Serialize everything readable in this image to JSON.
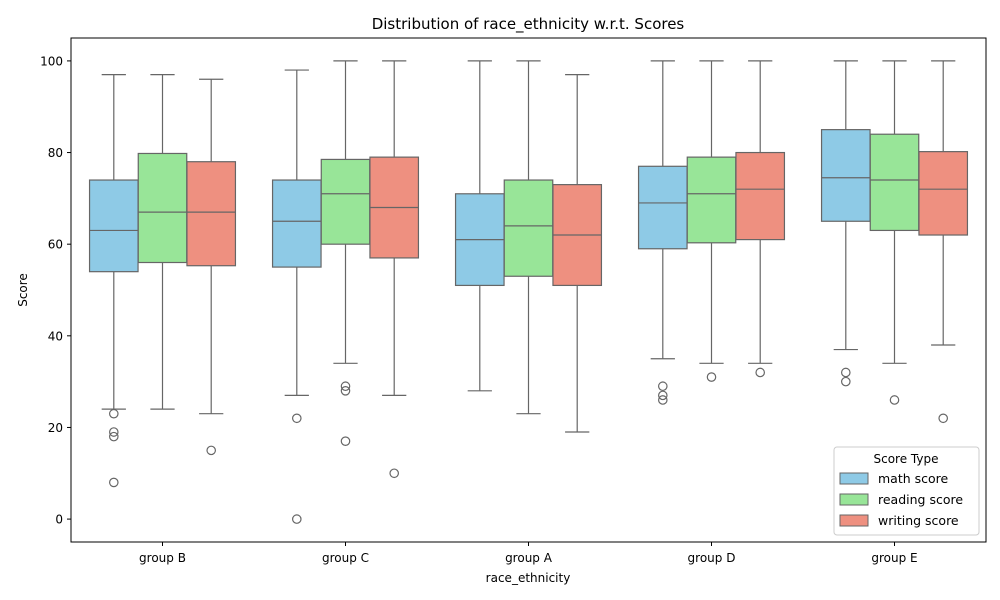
{
  "chart_data": {
    "type": "box",
    "title": "Distribution of race_ethnicity w.r.t. Scores",
    "xlabel": "race_ethnicity",
    "ylabel": "Score",
    "ylim": [
      -5,
      105
    ],
    "yticks": [
      0,
      20,
      40,
      60,
      80,
      100
    ],
    "categories": [
      "group B",
      "group C",
      "group A",
      "group D",
      "group E"
    ],
    "legend": {
      "title": "Score Type",
      "placement": "lower-right"
    },
    "series": [
      {
        "name": "math score",
        "color": "#8ecae6",
        "boxes": [
          {
            "low": 24,
            "q1": 54,
            "median": 63,
            "q3": 74,
            "high": 97,
            "outliers": [
              23,
              19,
              18,
              8
            ]
          },
          {
            "low": 27,
            "q1": 55,
            "median": 65,
            "q3": 74,
            "high": 98,
            "outliers": [
              22,
              0
            ]
          },
          {
            "low": 28,
            "q1": 51,
            "median": 61,
            "q3": 71,
            "high": 100,
            "outliers": []
          },
          {
            "low": 35,
            "q1": 59,
            "median": 69,
            "q3": 77,
            "high": 100,
            "outliers": [
              29,
              27,
              26
            ]
          },
          {
            "low": 37,
            "q1": 65,
            "median": 74.5,
            "q3": 85,
            "high": 100,
            "outliers": [
              32,
              30
            ]
          }
        ]
      },
      {
        "name": "reading score",
        "color": "#98e598",
        "boxes": [
          {
            "low": 24,
            "q1": 56,
            "median": 67,
            "q3": 79.8,
            "high": 97,
            "outliers": []
          },
          {
            "low": 34,
            "q1": 60,
            "median": 71,
            "q3": 78.5,
            "high": 100,
            "outliers": [
              29,
              28,
              17
            ]
          },
          {
            "low": 23,
            "q1": 53,
            "median": 64,
            "q3": 74,
            "high": 100,
            "outliers": []
          },
          {
            "low": 34,
            "q1": 60.3,
            "median": 71,
            "q3": 79,
            "high": 100,
            "outliers": [
              31
            ]
          },
          {
            "low": 34,
            "q1": 63,
            "median": 74,
            "q3": 84,
            "high": 100,
            "outliers": [
              26
            ]
          }
        ]
      },
      {
        "name": "writing score",
        "color": "#ee9080",
        "boxes": [
          {
            "low": 23,
            "q1": 55.3,
            "median": 67,
            "q3": 78,
            "high": 96,
            "outliers": [
              15
            ]
          },
          {
            "low": 27,
            "q1": 57,
            "median": 68,
            "q3": 79,
            "high": 100,
            "outliers": [
              10
            ]
          },
          {
            "low": 19,
            "q1": 51,
            "median": 62,
            "q3": 73,
            "high": 97,
            "outliers": []
          },
          {
            "low": 34,
            "q1": 61,
            "median": 72,
            "q3": 80,
            "high": 100,
            "outliers": [
              32
            ]
          },
          {
            "low": 38,
            "q1": 62,
            "median": 72,
            "q3": 80.2,
            "high": 100,
            "outliers": [
              22
            ]
          }
        ]
      }
    ]
  }
}
